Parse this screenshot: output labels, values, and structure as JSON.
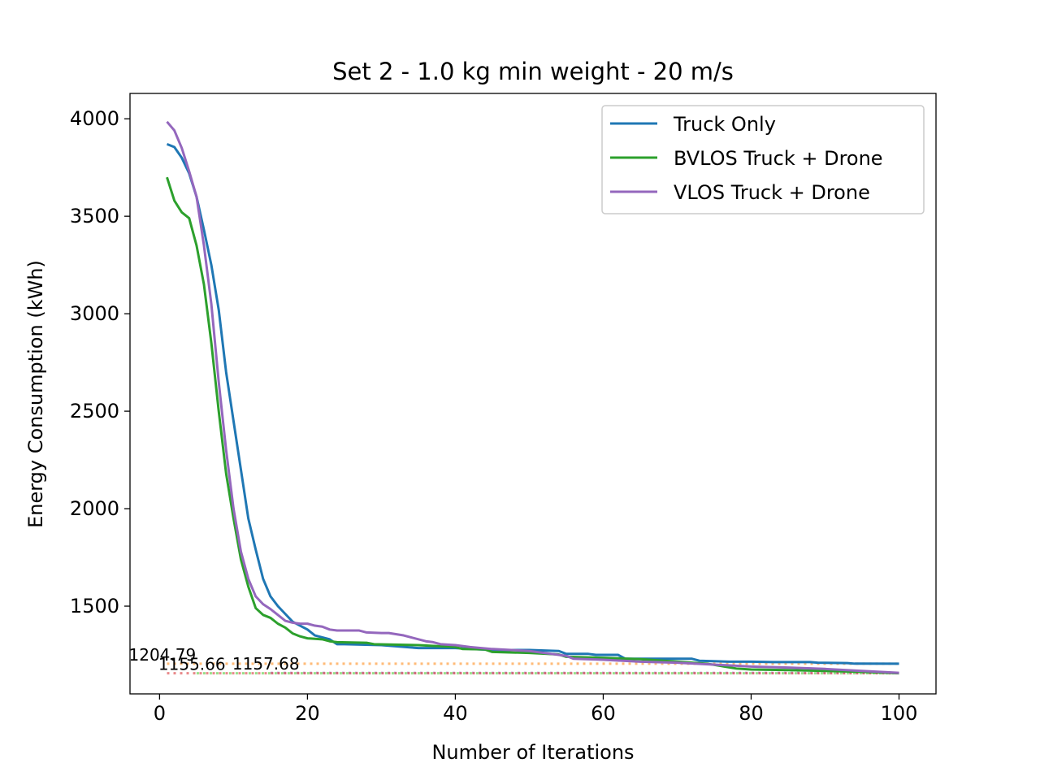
{
  "chart_data": {
    "type": "line",
    "title": "Set 2 - 1.0 kg min weight - 20 m/s",
    "xlabel": "Number of Iterations",
    "ylabel": "Energy Consumption (kWh)",
    "xlim": [
      -4,
      105
    ],
    "ylim": [
      1050,
      4130
    ],
    "xticks": [
      0,
      20,
      40,
      60,
      80,
      100
    ],
    "yticks": [
      1500,
      2000,
      2500,
      3000,
      3500,
      4000
    ],
    "grid": false,
    "legend_position": "top-right",
    "series": [
      {
        "name": "Truck Only",
        "color": "#1f77b4",
        "points": [
          [
            1,
            3870
          ],
          [
            2,
            3855
          ],
          [
            3,
            3800
          ],
          [
            4,
            3720
          ],
          [
            5,
            3600
          ],
          [
            6,
            3430
          ],
          [
            7,
            3250
          ],
          [
            8,
            3020
          ],
          [
            9,
            2700
          ],
          [
            10,
            2450
          ],
          [
            11,
            2200
          ],
          [
            12,
            1950
          ],
          [
            13,
            1790
          ],
          [
            14,
            1640
          ],
          [
            15,
            1550
          ],
          [
            16,
            1500
          ],
          [
            17,
            1460
          ],
          [
            18,
            1420
          ],
          [
            19,
            1400
          ],
          [
            20,
            1380
          ],
          [
            21,
            1350
          ],
          [
            22,
            1340
          ],
          [
            23,
            1330
          ],
          [
            24,
            1305
          ],
          [
            25,
            1305
          ],
          [
            30,
            1300
          ],
          [
            35,
            1285
          ],
          [
            40,
            1285
          ],
          [
            45,
            1275
          ],
          [
            50,
            1275
          ],
          [
            54,
            1270
          ],
          [
            55,
            1255
          ],
          [
            58,
            1255
          ],
          [
            59,
            1250
          ],
          [
            62,
            1250
          ],
          [
            63,
            1230
          ],
          [
            72,
            1230
          ],
          [
            73,
            1220
          ],
          [
            77,
            1215
          ],
          [
            80,
            1215
          ],
          [
            83,
            1213
          ],
          [
            88,
            1213
          ],
          [
            89,
            1210
          ],
          [
            93,
            1208
          ],
          [
            94,
            1205
          ],
          [
            100,
            1204.79
          ]
        ]
      },
      {
        "name": "BVLOS Truck + Drone",
        "color": "#2ca02c",
        "points": [
          [
            1,
            3700
          ],
          [
            2,
            3580
          ],
          [
            3,
            3520
          ],
          [
            4,
            3490
          ],
          [
            5,
            3350
          ],
          [
            6,
            3150
          ],
          [
            7,
            2850
          ],
          [
            8,
            2500
          ],
          [
            9,
            2180
          ],
          [
            10,
            1950
          ],
          [
            11,
            1740
          ],
          [
            12,
            1600
          ],
          [
            13,
            1490
          ],
          [
            14,
            1455
          ],
          [
            15,
            1440
          ],
          [
            16,
            1410
          ],
          [
            17,
            1390
          ],
          [
            18,
            1360
          ],
          [
            19,
            1345
          ],
          [
            20,
            1335
          ],
          [
            22,
            1330
          ],
          [
            23,
            1320
          ],
          [
            24,
            1315
          ],
          [
            28,
            1312
          ],
          [
            29,
            1305
          ],
          [
            35,
            1300
          ],
          [
            40,
            1290
          ],
          [
            41,
            1280
          ],
          [
            44,
            1278
          ],
          [
            45,
            1265
          ],
          [
            50,
            1260
          ],
          [
            54,
            1252
          ],
          [
            55,
            1240
          ],
          [
            60,
            1235
          ],
          [
            65,
            1228
          ],
          [
            70,
            1215
          ],
          [
            74,
            1205
          ],
          [
            78,
            1180
          ],
          [
            80,
            1175
          ],
          [
            85,
            1172
          ],
          [
            90,
            1168
          ],
          [
            95,
            1163
          ],
          [
            100,
            1155.66
          ]
        ]
      },
      {
        "name": "VLOS Truck + Drone",
        "color": "#9467bd",
        "points": [
          [
            1,
            3985
          ],
          [
            2,
            3940
          ],
          [
            3,
            3850
          ],
          [
            4,
            3730
          ],
          [
            5,
            3600
          ],
          [
            6,
            3350
          ],
          [
            7,
            3050
          ],
          [
            8,
            2650
          ],
          [
            9,
            2300
          ],
          [
            10,
            2000
          ],
          [
            11,
            1780
          ],
          [
            12,
            1640
          ],
          [
            13,
            1550
          ],
          [
            14,
            1510
          ],
          [
            15,
            1485
          ],
          [
            16,
            1455
          ],
          [
            17,
            1425
          ],
          [
            18,
            1415
          ],
          [
            19,
            1410
          ],
          [
            20,
            1410
          ],
          [
            21,
            1400
          ],
          [
            22,
            1395
          ],
          [
            23,
            1380
          ],
          [
            24,
            1375
          ],
          [
            27,
            1375
          ],
          [
            28,
            1365
          ],
          [
            30,
            1362
          ],
          [
            31,
            1362
          ],
          [
            33,
            1350
          ],
          [
            34,
            1340
          ],
          [
            36,
            1320
          ],
          [
            37,
            1315
          ],
          [
            38,
            1305
          ],
          [
            40,
            1300
          ],
          [
            42,
            1290
          ],
          [
            45,
            1280
          ],
          [
            50,
            1270
          ],
          [
            53,
            1255
          ],
          [
            55,
            1245
          ],
          [
            56,
            1230
          ],
          [
            60,
            1225
          ],
          [
            65,
            1215
          ],
          [
            70,
            1210
          ],
          [
            75,
            1200
          ],
          [
            80,
            1190
          ],
          [
            85,
            1185
          ],
          [
            90,
            1178
          ],
          [
            95,
            1168
          ],
          [
            100,
            1157.68
          ]
        ]
      }
    ],
    "reference_lines": [
      {
        "value": 1204.79,
        "label": "1204.79",
        "color": "#ffbb78"
      },
      {
        "value": 1155.66,
        "label": "1155.66",
        "color": "#98df8a"
      },
      {
        "value": 1157.68,
        "label": "1157.68",
        "color": "#c5b0d5"
      }
    ],
    "reference_line_overlay_color": "#d62728"
  }
}
